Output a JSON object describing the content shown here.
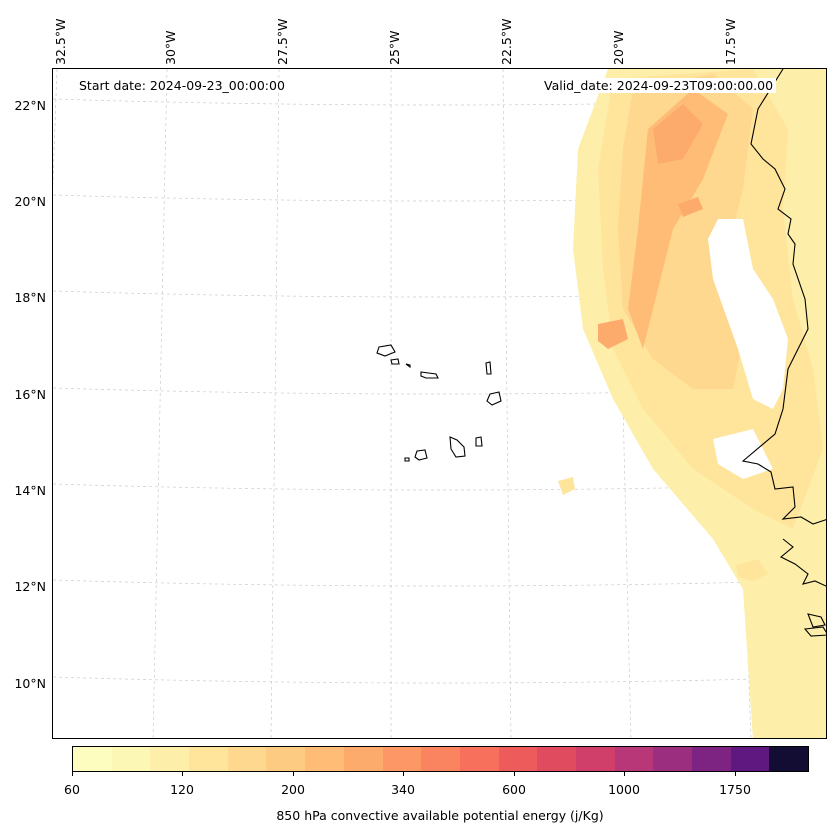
{
  "map": {
    "start_date": "Start date: 2024-09-23_00:00:00",
    "valid_date": "Valid_date: 2024-09-23T09:00:00.00",
    "lon_labels": [
      "32.5°W",
      "30°W",
      "27.5°W",
      "25°W",
      "22.5°W",
      "20°W",
      "17.5°W"
    ],
    "lat_labels": [
      "22°N",
      "20°N",
      "18°N",
      "16°N",
      "14°N",
      "12°N",
      "10°N"
    ],
    "coastline_color": "#000000",
    "gridline_color": "#cccccc"
  },
  "colorbar": {
    "label": "850 hPa convective available potential energy (j/Kg)",
    "tick_labels": [
      "60",
      "120",
      "200",
      "340",
      "600",
      "1000",
      "1750"
    ],
    "colors": [
      "#fcfdbf",
      "#fdf7b6",
      "#fdefa9",
      "#fee59b",
      "#fed88e",
      "#fecb82",
      "#febc76",
      "#fdab6d",
      "#fd9866",
      "#fb8460",
      "#f6705c",
      "#ed5b5a",
      "#e04b60",
      "#cf3f6a",
      "#b73779",
      "#9c2e7f",
      "#7d2482",
      "#5f187f",
      "#130d34"
    ]
  }
}
